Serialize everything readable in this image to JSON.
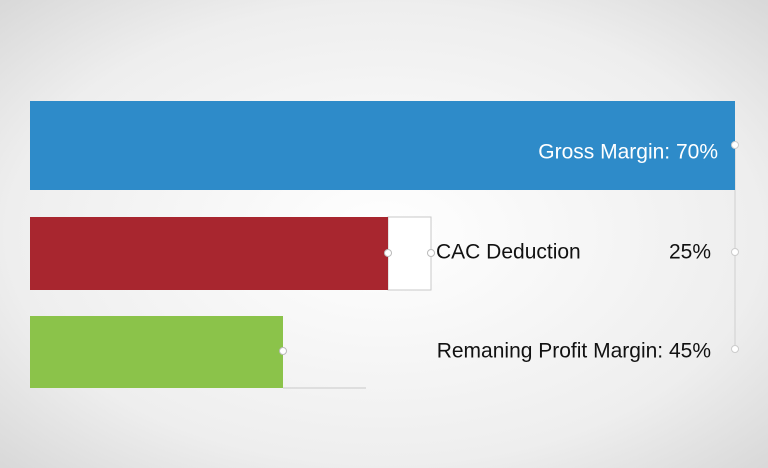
{
  "bars": [
    {
      "label": "Gross Margin: 70%"
    },
    {
      "label": "CAC Deduction",
      "value": "25%"
    },
    {
      "label": "Remaning Profit Margin: 45%"
    }
  ]
}
